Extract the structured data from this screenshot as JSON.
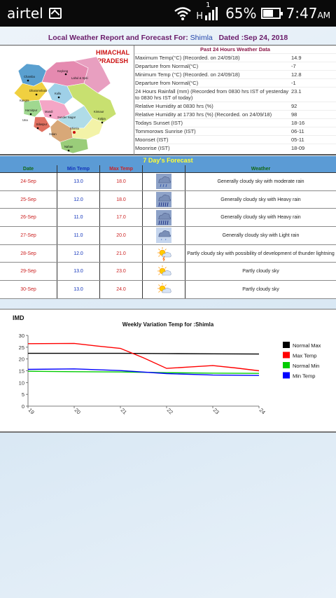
{
  "status_bar": {
    "carrier": "airtel",
    "net_type": "H",
    "signal_sim": "1",
    "battery": "65%",
    "battery_level": 0.65,
    "time": "7:47",
    "ampm": "AM"
  },
  "report": {
    "title_prefix": "Local Weather Report and Forecast For:",
    "place": "Shimla",
    "dated": "Dated :Sep 24, 2018"
  },
  "map": {
    "title_line1": "HIMACHAL",
    "title_line2": "PRADESH",
    "districts": [
      "Chamba",
      "Keylong",
      "Lahul & Spiti",
      "Dharamshala",
      "Kangra",
      "Kullu",
      "Hamirpur",
      "Mandi",
      "Una",
      "Bilaspur",
      "Sunder Nagar",
      "Kinnaur",
      "Kalpa",
      "Shimla",
      "Solan",
      "Nahan"
    ]
  },
  "past24": {
    "title": "Past 24 Hours Weather Data",
    "rows": [
      {
        "label": "Maximum Temp(°C) (Recorded. on 24/09/18)",
        "value": "14.9"
      },
      {
        "label": "Departure from Normal(°C)",
        "value": "-7"
      },
      {
        "label": "Minimum Temp (°C) (Recorded. on 24/09/18)",
        "value": "12.8"
      },
      {
        "label": "Departure from Normal(°C)",
        "value": "-1"
      },
      {
        "label": "24 Hours Rainfall (mm) (Recorded from 0830 hrs IST of yesterday to 0830 hrs IST of today)",
        "value": "23.1"
      },
      {
        "label": "Relative Humidity at 0830 hrs (%)",
        "value": "92"
      },
      {
        "label": "Relative Humidity at 1730 hrs (%) (Recorded. on 24/09/18)",
        "value": "98"
      },
      {
        "label": "Todays Sunset (IST)",
        "value": "18-16"
      },
      {
        "label": "Tommorows Sunrise (IST)",
        "value": "06-11"
      },
      {
        "label": "Moonset (IST)",
        "value": "05-11"
      },
      {
        "label": "Moonrise (IST)",
        "value": "18-09"
      }
    ]
  },
  "forecast": {
    "title": "7 Day's Forecast",
    "headers": {
      "date": "Date",
      "min": "Min Temp",
      "max": "Max Temp",
      "weather": "Weather"
    },
    "rows": [
      {
        "date": "24-Sep",
        "min": "13.0",
        "max": "18.0",
        "icon": "moderate-rain-icon",
        "weather": "Generally cloudy sky with moderate rain"
      },
      {
        "date": "25-Sep",
        "min": "12.0",
        "max": "18.0",
        "icon": "heavy-rain-icon",
        "weather": "Generally cloudy sky with Heavy rain"
      },
      {
        "date": "26-Sep",
        "min": "11.0",
        "max": "17.0",
        "icon": "heavy-rain-icon",
        "weather": "Generally cloudy sky with Heavy rain"
      },
      {
        "date": "27-Sep",
        "min": "11.0",
        "max": "20.0",
        "icon": "light-rain-icon",
        "weather": "Generally cloudy sky with Light rain"
      },
      {
        "date": "28-Sep",
        "min": "12.0",
        "max": "21.0",
        "icon": "thunder-icon",
        "weather": "Partly cloudy sky with possibility of development of thunder lightning"
      },
      {
        "date": "29-Sep",
        "min": "13.0",
        "max": "23.0",
        "icon": "partly-cloudy-icon",
        "weather": "Partly cloudy sky"
      },
      {
        "date": "30-Sep",
        "min": "13.0",
        "max": "24.0",
        "icon": "partly-cloudy-icon",
        "weather": "Partly cloudy sky"
      }
    ]
  },
  "chart_data": {
    "type": "line",
    "logo": "IMD",
    "title": "Weekly Variation Temp for :Shimla",
    "x": [
      19,
      20,
      21,
      22,
      23,
      24
    ],
    "xlim": [
      19,
      24
    ],
    "ylim": [
      0,
      30
    ],
    "yticks": [
      0,
      5,
      10,
      15,
      20,
      25,
      30
    ],
    "legend_position": "right",
    "grid": false,
    "series": [
      {
        "name": "Normal Max",
        "color": "#000000",
        "points": [
          [
            19,
            22.4
          ],
          [
            20,
            22.4
          ],
          [
            21,
            22.4
          ],
          [
            22,
            22.3
          ],
          [
            23,
            22.2
          ],
          [
            24,
            22.1
          ]
        ]
      },
      {
        "name": "Max Temp",
        "color": "#ff0000",
        "points": [
          [
            19,
            26.5
          ],
          [
            20,
            26.6
          ],
          [
            20.5,
            25.5
          ],
          [
            21,
            24.5
          ],
          [
            21.5,
            20.5
          ],
          [
            22,
            16.0
          ],
          [
            22.5,
            16.6
          ],
          [
            23,
            17.2
          ],
          [
            23.5,
            16.2
          ],
          [
            24,
            15.0
          ]
        ]
      },
      {
        "name": "Normal Min",
        "color": "#00cc00",
        "points": [
          [
            19,
            14.8
          ],
          [
            20,
            14.6
          ],
          [
            21,
            14.5
          ],
          [
            22,
            14.2
          ],
          [
            23,
            14.0
          ],
          [
            24,
            13.9
          ]
        ]
      },
      {
        "name": "Min Temp",
        "color": "#0000ff",
        "points": [
          [
            19,
            15.6
          ],
          [
            20,
            15.8
          ],
          [
            21,
            15.1
          ],
          [
            22,
            13.8
          ],
          [
            23,
            13.2
          ],
          [
            24,
            13.0
          ]
        ]
      }
    ]
  }
}
